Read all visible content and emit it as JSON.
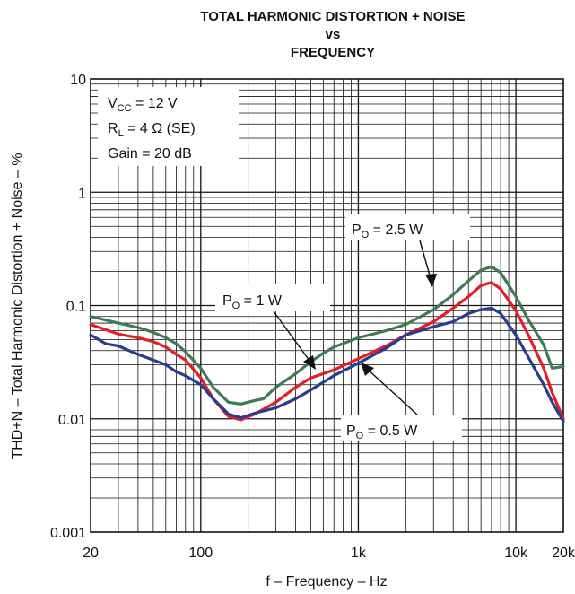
{
  "chart_data": {
    "type": "line",
    "title_lines": [
      "TOTAL HARMONIC DISTORTION + NOISE",
      "vs",
      "FREQUENCY"
    ],
    "xlabel": "f – Frequency – Hz",
    "ylabel": "THD+N – Total Harmonic Distortion + Noise – %",
    "x_scale": "log",
    "y_scale": "log",
    "xlim": [
      20,
      20000
    ],
    "ylim": [
      0.001,
      10
    ],
    "x_ticks": [
      {
        "value": 20,
        "label": "20"
      },
      {
        "value": 100,
        "label": "100"
      },
      {
        "value": 1000,
        "label": "1k"
      },
      {
        "value": 10000,
        "label": "10k"
      },
      {
        "value": 20000,
        "label": "20k"
      }
    ],
    "y_ticks": [
      {
        "value": 0.001,
        "label": "0.001"
      },
      {
        "value": 0.01,
        "label": "0.01"
      },
      {
        "value": 0.1,
        "label": "0.1"
      },
      {
        "value": 1,
        "label": "1"
      },
      {
        "value": 10,
        "label": "10"
      }
    ],
    "grid": true,
    "conditions": {
      "vcc": {
        "main": "V",
        "sub": "CC",
        "rest": " = 12 V"
      },
      "rl": {
        "main": "R",
        "sub": "L",
        "rest": " = 4 Ω (SE)"
      },
      "gain": "Gain = 20 dB"
    },
    "series": [
      {
        "name": "Pₒ = 2.5 W",
        "label_main": "P",
        "label_sub": "O",
        "label_rest": " = 2.5 W",
        "color": "#3d7a55",
        "points": [
          [
            20,
            0.08
          ],
          [
            30,
            0.07
          ],
          [
            40,
            0.064
          ],
          [
            50,
            0.058
          ],
          [
            60,
            0.052
          ],
          [
            70,
            0.046
          ],
          [
            80,
            0.039
          ],
          [
            100,
            0.028
          ],
          [
            120,
            0.019
          ],
          [
            150,
            0.014
          ],
          [
            180,
            0.0135
          ],
          [
            220,
            0.0145
          ],
          [
            250,
            0.015
          ],
          [
            300,
            0.019
          ],
          [
            400,
            0.025
          ],
          [
            500,
            0.032
          ],
          [
            600,
            0.038
          ],
          [
            700,
            0.043
          ],
          [
            1000,
            0.052
          ],
          [
            1500,
            0.06
          ],
          [
            2000,
            0.068
          ],
          [
            3000,
            0.092
          ],
          [
            4000,
            0.125
          ],
          [
            5000,
            0.165
          ],
          [
            6000,
            0.205
          ],
          [
            7000,
            0.22
          ],
          [
            8000,
            0.195
          ],
          [
            10000,
            0.12
          ],
          [
            12000,
            0.075
          ],
          [
            15000,
            0.045
          ],
          [
            17000,
            0.028
          ],
          [
            20000,
            0.029
          ]
        ]
      },
      {
        "name": "Pₒ = 1 W",
        "label_main": "P",
        "label_sub": "O",
        "label_rest": " = 1 W",
        "color": "#e01f26",
        "points": [
          [
            20,
            0.068
          ],
          [
            30,
            0.056
          ],
          [
            40,
            0.052
          ],
          [
            50,
            0.048
          ],
          [
            60,
            0.043
          ],
          [
            70,
            0.037
          ],
          [
            80,
            0.033
          ],
          [
            100,
            0.023
          ],
          [
            120,
            0.015
          ],
          [
            150,
            0.0105
          ],
          [
            180,
            0.0098
          ],
          [
            220,
            0.011
          ],
          [
            300,
            0.014
          ],
          [
            400,
            0.019
          ],
          [
            500,
            0.023
          ],
          [
            700,
            0.027
          ],
          [
            1000,
            0.034
          ],
          [
            1500,
            0.044
          ],
          [
            2000,
            0.055
          ],
          [
            3000,
            0.072
          ],
          [
            4000,
            0.095
          ],
          [
            5000,
            0.12
          ],
          [
            6000,
            0.15
          ],
          [
            7000,
            0.16
          ],
          [
            8000,
            0.14
          ],
          [
            10000,
            0.09
          ],
          [
            12000,
            0.055
          ],
          [
            15000,
            0.028
          ],
          [
            17000,
            0.017
          ],
          [
            20000,
            0.01
          ]
        ]
      },
      {
        "name": "Pₒ = 0.5 W",
        "label_main": "P",
        "label_sub": "O",
        "label_rest": " = 0.5 W",
        "color": "#2b3b8f",
        "points": [
          [
            20,
            0.055
          ],
          [
            25,
            0.046
          ],
          [
            30,
            0.044
          ],
          [
            35,
            0.04
          ],
          [
            40,
            0.037
          ],
          [
            50,
            0.033
          ],
          [
            60,
            0.03
          ],
          [
            70,
            0.026
          ],
          [
            80,
            0.024
          ],
          [
            100,
            0.02
          ],
          [
            120,
            0.015
          ],
          [
            150,
            0.011
          ],
          [
            180,
            0.0102
          ],
          [
            220,
            0.0112
          ],
          [
            300,
            0.0125
          ],
          [
            400,
            0.015
          ],
          [
            500,
            0.018
          ],
          [
            700,
            0.024
          ],
          [
            1000,
            0.031
          ],
          [
            1500,
            0.042
          ],
          [
            2000,
            0.055
          ],
          [
            3000,
            0.065
          ],
          [
            4000,
            0.072
          ],
          [
            5000,
            0.085
          ],
          [
            6000,
            0.092
          ],
          [
            7000,
            0.095
          ],
          [
            8000,
            0.085
          ],
          [
            10000,
            0.055
          ],
          [
            12000,
            0.035
          ],
          [
            15000,
            0.02
          ],
          [
            17000,
            0.014
          ],
          [
            20000,
            0.0095
          ]
        ]
      }
    ]
  }
}
